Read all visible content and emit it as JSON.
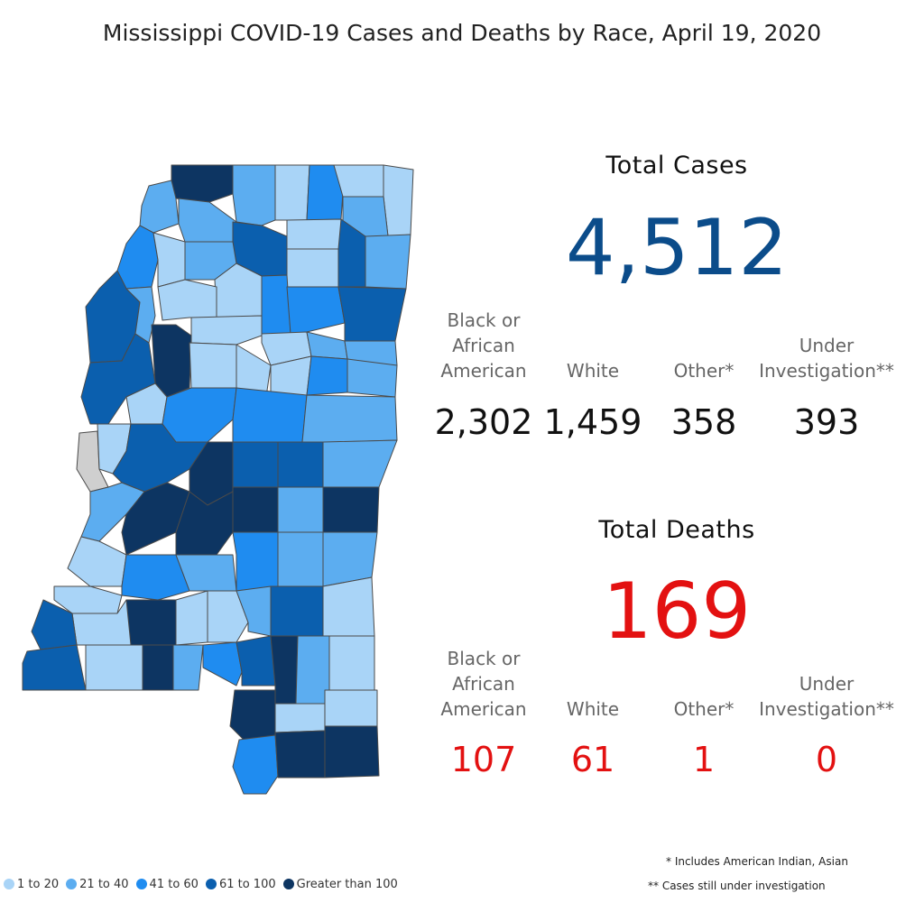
{
  "title": "Mississippi COVID-19 Cases and Deaths by Race, April 19, 2020",
  "cases": {
    "heading": "Total Cases",
    "total": "4,512",
    "categories": [
      {
        "label_lines": [
          "Black or",
          "African",
          "American"
        ],
        "value": "2,302"
      },
      {
        "label_lines": [
          "White"
        ],
        "value": "1,459"
      },
      {
        "label_lines": [
          "Other*"
        ],
        "value": "358"
      },
      {
        "label_lines": [
          "Under",
          "Investigation**"
        ],
        "value": "393"
      }
    ]
  },
  "deaths": {
    "heading": "Total Deaths",
    "total": "169",
    "categories": [
      {
        "label_lines": [
          "Black or",
          "African",
          "American"
        ],
        "value": "107"
      },
      {
        "label_lines": [
          "White"
        ],
        "value": "61"
      },
      {
        "label_lines": [
          "Other*"
        ],
        "value": "1"
      },
      {
        "label_lines": [
          "Under",
          "Investigation**"
        ],
        "value": "0"
      }
    ]
  },
  "legend": [
    {
      "label": "1 to 20",
      "color": "#a9d4f7"
    },
    {
      "label": "21 to 40",
      "color": "#5cadf0"
    },
    {
      "label": "41 to 60",
      "color": "#1f8cf0"
    },
    {
      "label": "61 to 100",
      "color": "#0b5fae"
    },
    {
      "label": "Greater than 100",
      "color": "#0d3562"
    }
  ],
  "no_data_color": "#cfcfcf",
  "notes": {
    "other": "* Includes American Indian, Asian",
    "investigation": "** Cases still under investigation"
  }
}
